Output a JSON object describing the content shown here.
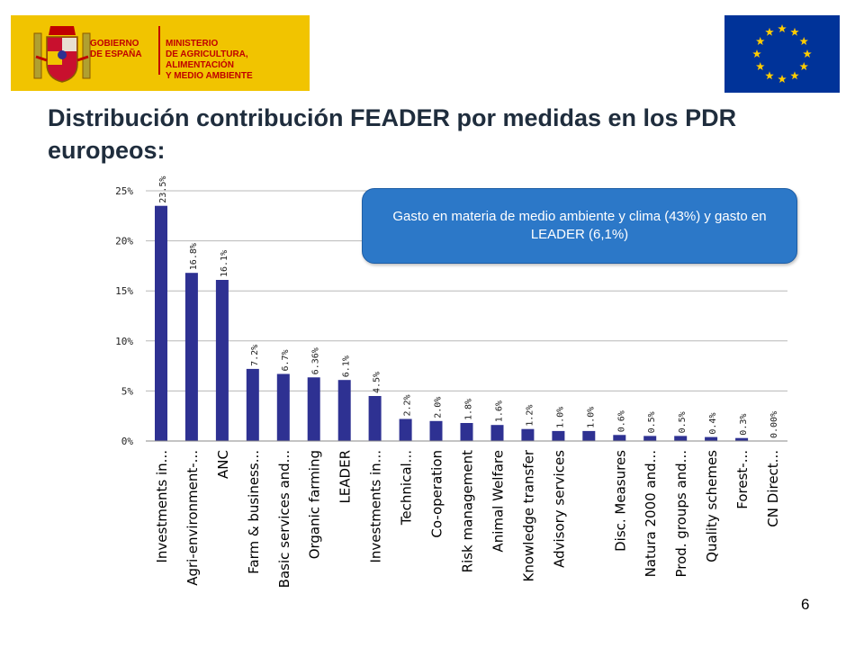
{
  "header": {
    "logo_left_line1": "GOBIERNO\nDE ESPAÑA",
    "logo_left_line2": "MINISTERIO\nDE AGRICULTURA, ALIMENTACIÓN\nY MEDIO AMBIENTE",
    "logo_right": "European Union flag"
  },
  "title": "Distribución contribución FEADER por medidas en los PDR europeos:",
  "callout": "Gasto en materia de medio ambiente y clima (43%) y gasto en LEADER (6,1%)",
  "page_number": "6",
  "colors": {
    "bar": "#2e3192",
    "callout": "#2c78c8",
    "banner": "#f1c400"
  },
  "chart_data": {
    "type": "bar",
    "title": "",
    "xlabel": "",
    "ylabel": "",
    "ylim": [
      0,
      25
    ],
    "yticks": [
      "0%",
      "5%",
      "10%",
      "15%",
      "20%",
      "25%"
    ],
    "grid": true,
    "categories": [
      "Investments in...",
      "Agri-environment-...",
      "ANC",
      "Farm & business...",
      "Basic services and...",
      "Organic farming",
      "LEADER",
      "Investments in...",
      "Technical...",
      "Co-operation",
      "Risk management",
      "Animal Welfare",
      "Knowledge transfer",
      "Advisory services",
      "",
      "Disc. Measures",
      "Natura 2000 and...",
      "Prod. groups and...",
      "Quality schemes",
      "Forest-...",
      "CN Direct..."
    ],
    "values": [
      23.5,
      16.8,
      16.1,
      7.2,
      6.7,
      6.36,
      6.1,
      4.5,
      2.2,
      2.0,
      1.8,
      1.6,
      1.2,
      1.0,
      1.0,
      0.6,
      0.5,
      0.5,
      0.4,
      0.3,
      0.0
    ],
    "labels": [
      "23.5%",
      "16.8%",
      "16.1%",
      "7.2%",
      "6.7%",
      "6.36%",
      "6.1%",
      "4.5%",
      "2.2%",
      "2.0%",
      "1.8%",
      "1.6%",
      "1.2%",
      "1.0%",
      "1.0%",
      "0.6%",
      "0.5%",
      "0.5%",
      "0.4%",
      "0.3%",
      "0.00%"
    ]
  }
}
